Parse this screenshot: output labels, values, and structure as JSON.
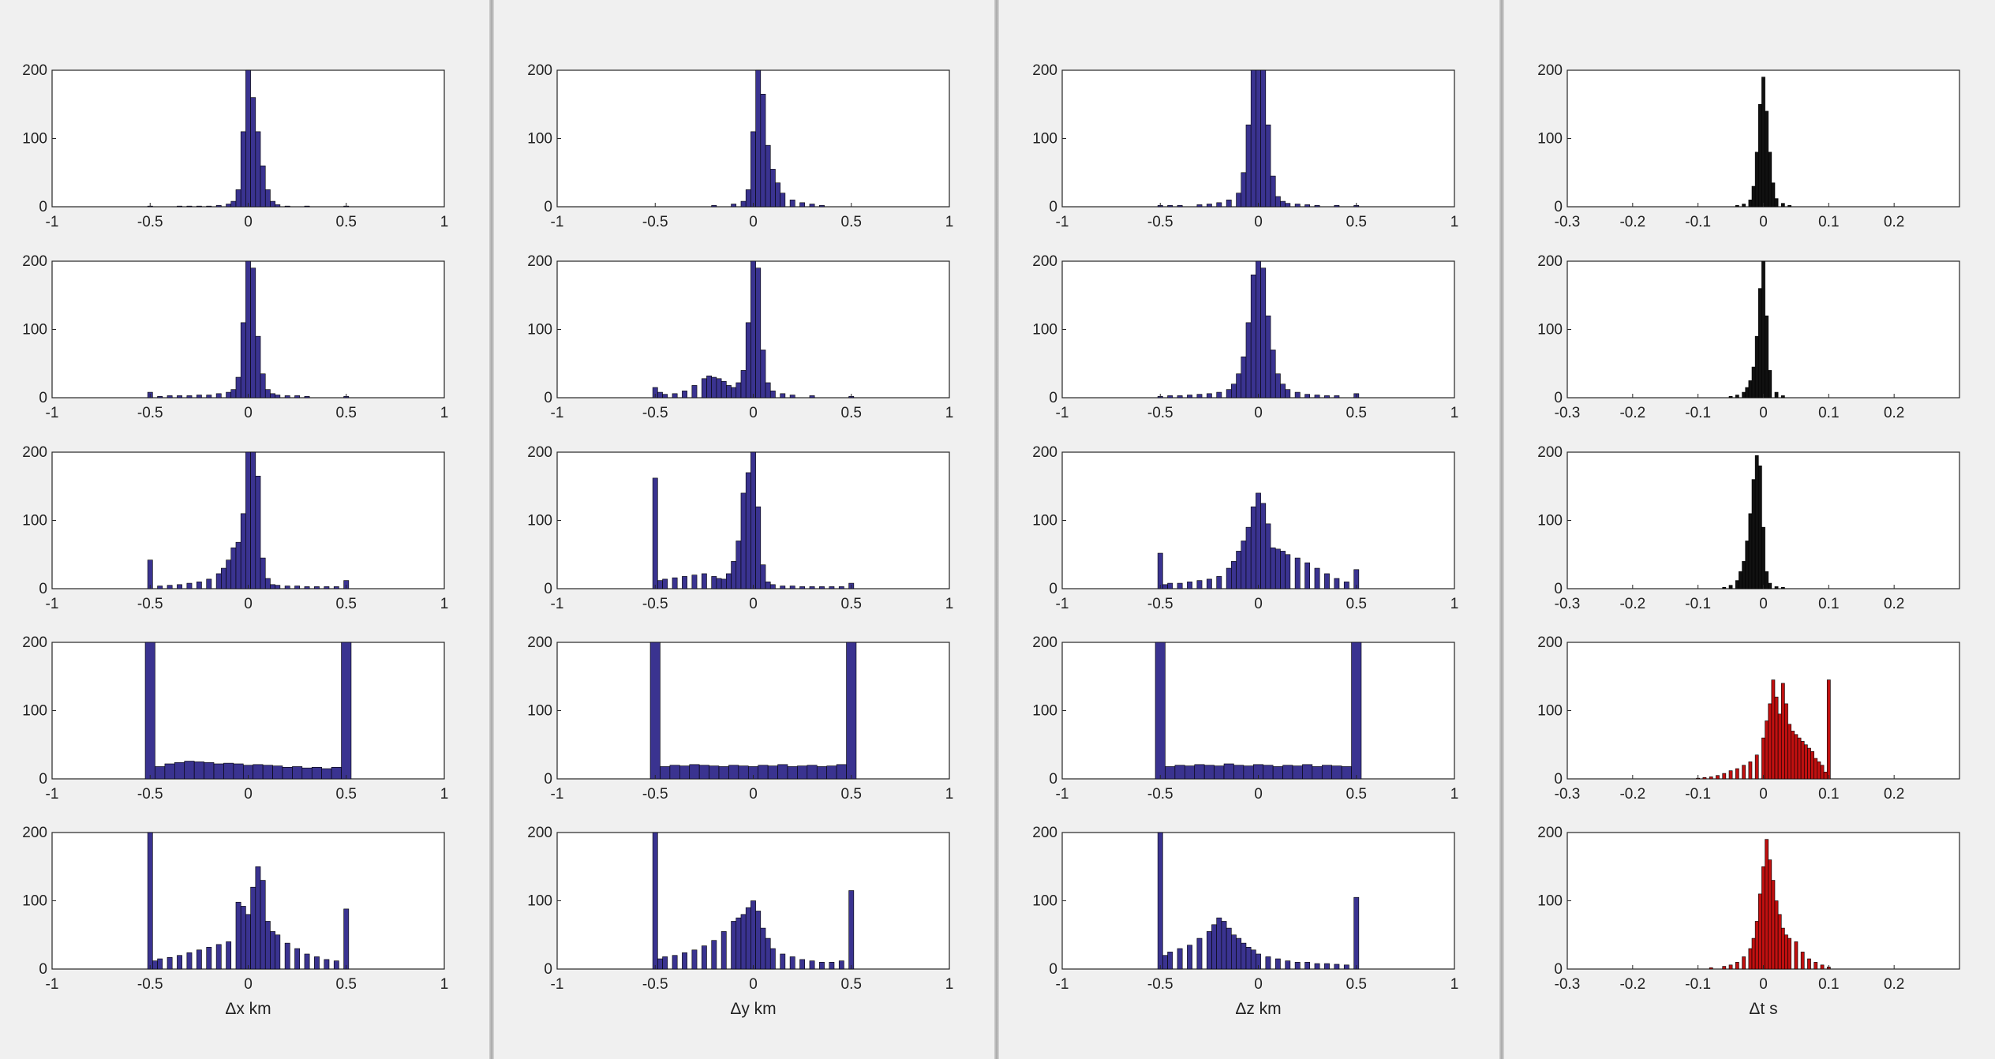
{
  "colors": {
    "blue": "#3a3390",
    "red": "#c01010",
    "black": "#111111",
    "axes_bg": "#ffffff"
  },
  "chart_data": [
    {
      "type": "bar",
      "column_xlabel": "Δx km",
      "xlim": [
        -1,
        1
      ],
      "ylim": [
        0,
        200
      ],
      "xticks": [
        "-1",
        "-0.5",
        "0",
        "0.5",
        "1"
      ],
      "yticks": [
        "0",
        "100",
        "200"
      ],
      "rows": [
        {
          "color": "blue",
          "bin_centers": [
            -0.5,
            -0.45,
            -0.4,
            -0.35,
            -0.3,
            -0.25,
            -0.2,
            -0.15,
            -0.1,
            -0.075,
            -0.05,
            -0.025,
            0,
            0.025,
            0.05,
            0.075,
            0.1,
            0.125,
            0.15,
            0.2,
            0.3,
            0.5
          ],
          "counts": [
            1,
            0,
            0,
            1,
            1,
            1,
            1,
            2,
            4,
            8,
            25,
            110,
            210,
            160,
            110,
            60,
            25,
            8,
            3,
            1,
            1,
            1
          ]
        },
        {
          "color": "blue",
          "bin_centers": [
            -0.5,
            -0.45,
            -0.4,
            -0.35,
            -0.3,
            -0.25,
            -0.2,
            -0.15,
            -0.1,
            -0.075,
            -0.05,
            -0.025,
            0,
            0.025,
            0.05,
            0.075,
            0.1,
            0.125,
            0.15,
            0.2,
            0.25,
            0.3,
            0.5
          ],
          "counts": [
            8,
            2,
            3,
            3,
            3,
            4,
            4,
            6,
            8,
            12,
            30,
            110,
            210,
            190,
            90,
            35,
            12,
            6,
            4,
            3,
            3,
            2,
            2
          ]
        },
        {
          "color": "blue",
          "bin_centers": [
            -0.5,
            -0.45,
            -0.4,
            -0.35,
            -0.3,
            -0.25,
            -0.2,
            -0.15,
            -0.125,
            -0.1,
            -0.075,
            -0.05,
            -0.025,
            0,
            0.025,
            0.05,
            0.075,
            0.1,
            0.125,
            0.15,
            0.2,
            0.25,
            0.3,
            0.35,
            0.4,
            0.45,
            0.5
          ],
          "counts": [
            42,
            4,
            5,
            6,
            8,
            10,
            14,
            22,
            30,
            42,
            60,
            68,
            110,
            205,
            200,
            165,
            45,
            15,
            6,
            5,
            4,
            4,
            3,
            3,
            3,
            3,
            12
          ]
        },
        {
          "color": "blue",
          "bin_centers": [
            -0.5,
            -0.45,
            -0.4,
            -0.35,
            -0.3,
            -0.25,
            -0.2,
            -0.15,
            -0.1,
            -0.05,
            0,
            0.05,
            0.1,
            0.15,
            0.2,
            0.25,
            0.3,
            0.35,
            0.4,
            0.45,
            0.5
          ],
          "counts": [
            200,
            18,
            22,
            24,
            26,
            25,
            24,
            22,
            23,
            22,
            20,
            21,
            20,
            19,
            17,
            18,
            16,
            17,
            15,
            17,
            200
          ]
        },
        {
          "color": "blue",
          "bin_centers": [
            -0.5,
            -0.475,
            -0.45,
            -0.4,
            -0.35,
            -0.3,
            -0.25,
            -0.2,
            -0.15,
            -0.1,
            -0.05,
            -0.025,
            0,
            0.025,
            0.05,
            0.075,
            0.1,
            0.125,
            0.15,
            0.2,
            0.25,
            0.3,
            0.35,
            0.4,
            0.45,
            0.5
          ],
          "counts": [
            200,
            12,
            15,
            17,
            20,
            24,
            28,
            32,
            36,
            40,
            98,
            92,
            80,
            120,
            150,
            130,
            70,
            55,
            50,
            38,
            30,
            22,
            18,
            14,
            12,
            88
          ]
        }
      ]
    },
    {
      "type": "bar",
      "column_xlabel": "Δy km",
      "xlim": [
        -1,
        1
      ],
      "ylim": [
        0,
        200
      ],
      "xticks": [
        "-1",
        "-0.5",
        "0",
        "0.5",
        "1"
      ],
      "yticks": [
        "0",
        "100",
        "200"
      ],
      "rows": [
        {
          "color": "blue",
          "bin_centers": [
            -0.2,
            -0.1,
            -0.05,
            -0.025,
            0,
            0.025,
            0.05,
            0.075,
            0.1,
            0.125,
            0.15,
            0.2,
            0.25,
            0.3,
            0.35
          ],
          "counts": [
            2,
            4,
            8,
            25,
            110,
            210,
            165,
            90,
            55,
            35,
            20,
            10,
            6,
            4,
            2
          ]
        },
        {
          "color": "blue",
          "bin_centers": [
            -0.5,
            -0.475,
            -0.45,
            -0.4,
            -0.35,
            -0.3,
            -0.25,
            -0.225,
            -0.2,
            -0.175,
            -0.15,
            -0.125,
            -0.1,
            -0.075,
            -0.05,
            -0.025,
            0,
            0.025,
            0.05,
            0.075,
            0.1,
            0.15,
            0.2,
            0.3,
            0.5
          ],
          "counts": [
            15,
            8,
            5,
            6,
            10,
            18,
            28,
            32,
            30,
            28,
            24,
            18,
            15,
            22,
            40,
            110,
            205,
            190,
            70,
            22,
            10,
            6,
            4,
            3,
            2
          ]
        },
        {
          "color": "blue",
          "bin_centers": [
            -0.5,
            -0.475,
            -0.45,
            -0.4,
            -0.35,
            -0.3,
            -0.25,
            -0.2,
            -0.175,
            -0.15,
            -0.125,
            -0.1,
            -0.075,
            -0.05,
            -0.025,
            0,
            0.025,
            0.05,
            0.075,
            0.1,
            0.15,
            0.2,
            0.25,
            0.3,
            0.35,
            0.4,
            0.45,
            0.5
          ],
          "counts": [
            162,
            12,
            14,
            16,
            18,
            20,
            22,
            18,
            15,
            14,
            22,
            40,
            70,
            140,
            170,
            215,
            120,
            35,
            10,
            6,
            4,
            4,
            3,
            3,
            3,
            3,
            3,
            8
          ]
        },
        {
          "color": "blue",
          "bin_centers": [
            -0.5,
            -0.45,
            -0.4,
            -0.35,
            -0.3,
            -0.25,
            -0.2,
            -0.15,
            -0.1,
            -0.05,
            0,
            0.05,
            0.1,
            0.15,
            0.2,
            0.25,
            0.3,
            0.35,
            0.4,
            0.45,
            0.5
          ],
          "counts": [
            200,
            18,
            20,
            19,
            21,
            20,
            19,
            18,
            20,
            19,
            18,
            20,
            19,
            21,
            18,
            19,
            20,
            18,
            19,
            21,
            200
          ]
        },
        {
          "color": "blue",
          "bin_centers": [
            -0.5,
            -0.475,
            -0.45,
            -0.4,
            -0.35,
            -0.3,
            -0.25,
            -0.2,
            -0.15,
            -0.1,
            -0.075,
            -0.05,
            -0.025,
            0,
            0.025,
            0.05,
            0.075,
            0.1,
            0.15,
            0.2,
            0.25,
            0.3,
            0.35,
            0.4,
            0.45,
            0.5
          ],
          "counts": [
            200,
            15,
            18,
            20,
            24,
            28,
            34,
            42,
            55,
            70,
            75,
            80,
            90,
            100,
            85,
            60,
            45,
            30,
            22,
            18,
            14,
            12,
            10,
            10,
            12,
            115
          ]
        }
      ]
    },
    {
      "type": "bar",
      "column_xlabel": "Δz km",
      "xlim": [
        -1,
        1
      ],
      "ylim": [
        0,
        200
      ],
      "xticks": [
        "-1",
        "-0.5",
        "0",
        "0.5",
        "1"
      ],
      "yticks": [
        "0",
        "100",
        "200"
      ],
      "rows": [
        {
          "color": "blue",
          "bin_centers": [
            -0.5,
            -0.45,
            -0.4,
            -0.3,
            -0.25,
            -0.2,
            -0.15,
            -0.1,
            -0.075,
            -0.05,
            -0.025,
            0,
            0.025,
            0.05,
            0.075,
            0.1,
            0.125,
            0.15,
            0.2,
            0.25,
            0.3,
            0.4,
            0.5
          ],
          "counts": [
            2,
            2,
            2,
            3,
            4,
            6,
            10,
            20,
            50,
            120,
            210,
            210,
            200,
            120,
            45,
            15,
            8,
            5,
            4,
            3,
            2,
            2,
            2
          ]
        },
        {
          "color": "blue",
          "bin_centers": [
            -0.5,
            -0.45,
            -0.4,
            -0.35,
            -0.3,
            -0.25,
            -0.2,
            -0.15,
            -0.125,
            -0.1,
            -0.075,
            -0.05,
            -0.025,
            0,
            0.025,
            0.05,
            0.075,
            0.1,
            0.125,
            0.15,
            0.2,
            0.25,
            0.3,
            0.35,
            0.4,
            0.5
          ],
          "counts": [
            2,
            3,
            3,
            4,
            5,
            6,
            8,
            12,
            20,
            35,
            60,
            110,
            180,
            200,
            190,
            120,
            70,
            35,
            20,
            12,
            8,
            5,
            4,
            3,
            3,
            6
          ]
        },
        {
          "color": "blue",
          "bin_centers": [
            -0.5,
            -0.475,
            -0.45,
            -0.4,
            -0.35,
            -0.3,
            -0.25,
            -0.2,
            -0.15,
            -0.125,
            -0.1,
            -0.075,
            -0.05,
            -0.025,
            0,
            0.025,
            0.05,
            0.075,
            0.1,
            0.125,
            0.15,
            0.2,
            0.25,
            0.3,
            0.35,
            0.4,
            0.45,
            0.5
          ],
          "counts": [
            52,
            6,
            8,
            8,
            10,
            12,
            14,
            18,
            30,
            40,
            55,
            70,
            90,
            120,
            140,
            125,
            95,
            60,
            58,
            55,
            50,
            45,
            38,
            30,
            22,
            15,
            10,
            28
          ]
        },
        {
          "color": "blue",
          "bin_centers": [
            -0.5,
            -0.45,
            -0.4,
            -0.35,
            -0.3,
            -0.25,
            -0.2,
            -0.15,
            -0.1,
            -0.05,
            0,
            0.05,
            0.1,
            0.15,
            0.2,
            0.25,
            0.3,
            0.35,
            0.4,
            0.45,
            0.5
          ],
          "counts": [
            200,
            18,
            20,
            19,
            21,
            20,
            19,
            22,
            20,
            19,
            21,
            20,
            18,
            20,
            19,
            21,
            18,
            20,
            19,
            18,
            200
          ]
        },
        {
          "color": "blue",
          "bin_centers": [
            -0.5,
            -0.475,
            -0.45,
            -0.4,
            -0.35,
            -0.3,
            -0.25,
            -0.225,
            -0.2,
            -0.175,
            -0.15,
            -0.125,
            -0.1,
            -0.075,
            -0.05,
            -0.025,
            0,
            0.05,
            0.1,
            0.15,
            0.2,
            0.25,
            0.3,
            0.35,
            0.4,
            0.45,
            0.5
          ],
          "counts": [
            200,
            20,
            25,
            30,
            35,
            45,
            55,
            65,
            75,
            70,
            60,
            50,
            45,
            38,
            32,
            28,
            22,
            18,
            15,
            12,
            10,
            10,
            8,
            8,
            7,
            6,
            105
          ]
        }
      ]
    },
    {
      "type": "bar",
      "column_xlabel": "Δt s",
      "xlim": [
        -0.3,
        0.3
      ],
      "ylim": [
        0,
        200
      ],
      "xticks": [
        "-0.3",
        "-0.2",
        "-0.1",
        "0",
        "0.1",
        "0.2"
      ],
      "yticks": [
        "0",
        "100",
        "200"
      ],
      "rows": [
        {
          "color": "black",
          "bin_centers": [
            -0.04,
            -0.03,
            -0.02,
            -0.015,
            -0.01,
            -0.005,
            0,
            0.005,
            0.01,
            0.015,
            0.02,
            0.03,
            0.04
          ],
          "counts": [
            2,
            4,
            10,
            30,
            80,
            150,
            190,
            140,
            80,
            35,
            12,
            5,
            2
          ]
        },
        {
          "color": "black",
          "bin_centers": [
            -0.05,
            -0.04,
            -0.03,
            -0.025,
            -0.02,
            -0.015,
            -0.01,
            -0.005,
            0,
            0.005,
            0.01,
            0.02,
            0.03
          ],
          "counts": [
            2,
            4,
            8,
            15,
            25,
            45,
            90,
            160,
            200,
            120,
            40,
            8,
            3
          ]
        },
        {
          "color": "black",
          "bin_centers": [
            -0.06,
            -0.05,
            -0.04,
            -0.035,
            -0.03,
            -0.025,
            -0.02,
            -0.015,
            -0.01,
            -0.005,
            0,
            0.005,
            0.01,
            0.02,
            0.03
          ],
          "counts": [
            2,
            5,
            12,
            25,
            40,
            70,
            110,
            160,
            195,
            180,
            90,
            25,
            8,
            3,
            2
          ]
        },
        {
          "color": "red",
          "bin_centers": [
            -0.1,
            -0.09,
            -0.08,
            -0.07,
            -0.06,
            -0.05,
            -0.04,
            -0.03,
            -0.02,
            -0.01,
            0,
            0.005,
            0.01,
            0.015,
            0.02,
            0.025,
            0.03,
            0.035,
            0.04,
            0.045,
            0.05,
            0.055,
            0.06,
            0.065,
            0.07,
            0.075,
            0.08,
            0.085,
            0.09,
            0.095,
            0.1
          ],
          "counts": [
            1,
            2,
            3,
            5,
            8,
            12,
            15,
            20,
            25,
            35,
            60,
            85,
            110,
            145,
            120,
            95,
            140,
            110,
            80,
            70,
            65,
            60,
            55,
            50,
            45,
            40,
            30,
            25,
            20,
            10,
            145
          ]
        },
        {
          "color": "red",
          "bin_centers": [
            -0.08,
            -0.06,
            -0.05,
            -0.04,
            -0.03,
            -0.02,
            -0.015,
            -0.01,
            -0.005,
            0,
            0.005,
            0.01,
            0.015,
            0.02,
            0.025,
            0.03,
            0.035,
            0.04,
            0.05,
            0.06,
            0.07,
            0.08,
            0.09,
            0.1
          ],
          "counts": [
            2,
            4,
            6,
            10,
            18,
            30,
            45,
            70,
            110,
            150,
            190,
            160,
            130,
            100,
            80,
            60,
            50,
            45,
            40,
            25,
            15,
            10,
            6,
            3
          ]
        }
      ]
    }
  ]
}
